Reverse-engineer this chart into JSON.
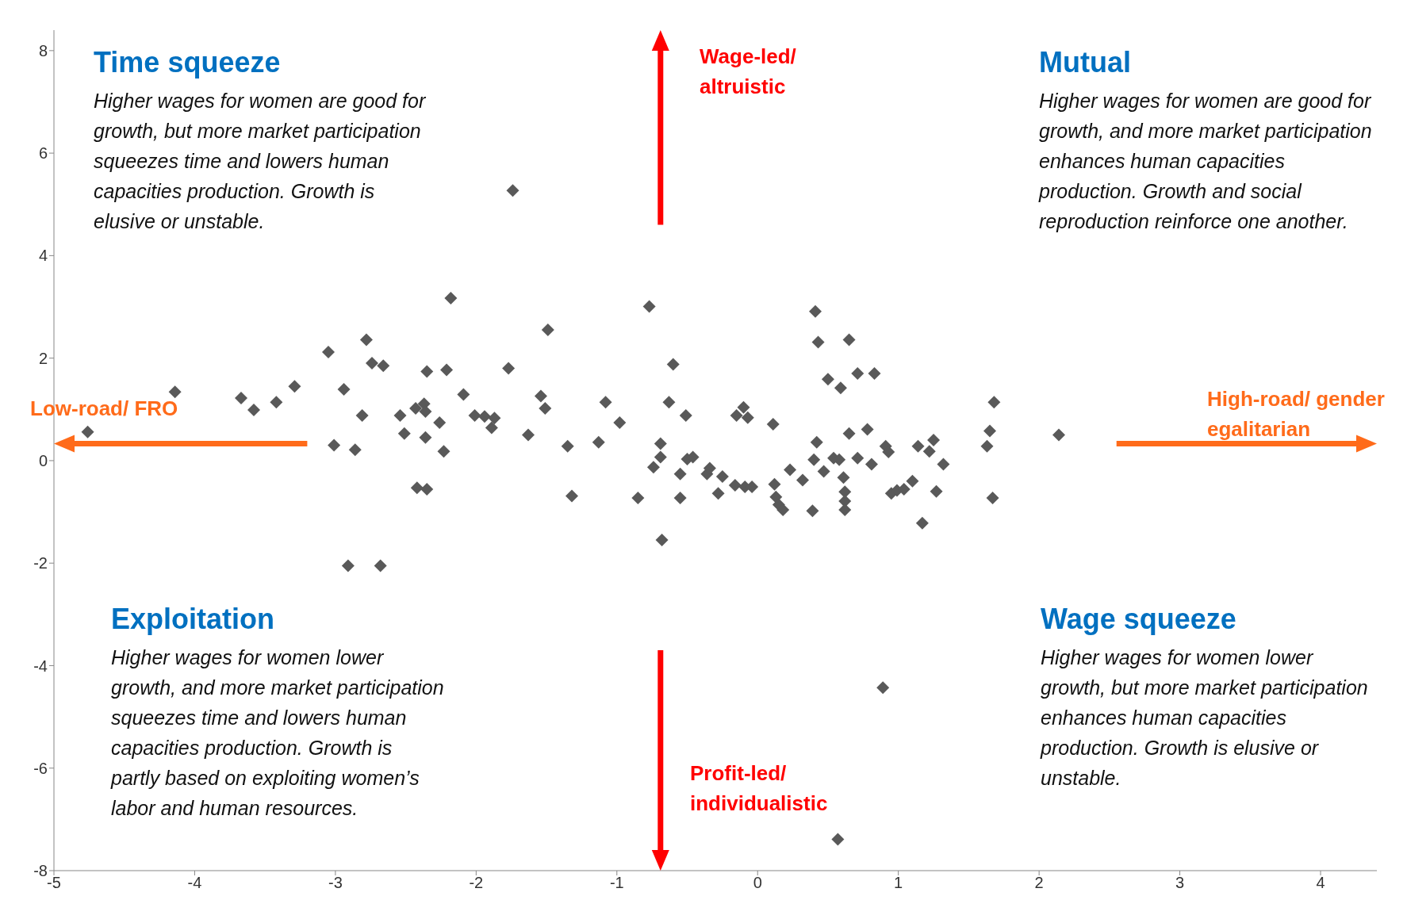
{
  "chart_data": {
    "type": "scatter",
    "marker": "diamond",
    "grid": false,
    "xlim": [
      -5,
      4.4
    ],
    "xticks": [
      -5,
      -4,
      -3,
      -2,
      -1,
      0,
      1,
      2,
      3,
      4
    ],
    "ylim": [
      -8,
      8.4
    ],
    "yticks": [
      -8,
      -6,
      -4,
      -2,
      0,
      2,
      4,
      6,
      8
    ],
    "series": [
      {
        "color": "#595959",
        "x": [
          -4.76,
          -4.14,
          -3.67,
          -3.58,
          -3.42,
          -3.29,
          -3.05,
          -3.01,
          -2.94,
          -2.91,
          -2.86,
          -2.81,
          -2.78,
          -2.74,
          -2.66,
          -2.68,
          -2.54,
          -2.51,
          -2.43,
          -2.42,
          -2.37,
          -2.36,
          -2.36,
          -2.35,
          -2.35,
          -2.26,
          -2.23,
          -2.21,
          -2.18,
          -2.09,
          -2.01,
          -1.94,
          -1.89,
          -1.87,
          -1.77,
          -1.74,
          -1.63,
          -1.54,
          -1.51,
          -1.49,
          -1.35,
          -1.32,
          -1.13,
          -1.08,
          -0.98,
          -0.85,
          -0.77,
          -0.74,
          -0.69,
          -0.69,
          -0.68,
          -0.63,
          -0.6,
          -0.55,
          -0.55,
          -0.51,
          -0.5,
          -0.46,
          -0.36,
          -0.34,
          -0.28,
          -0.25,
          -0.16,
          -0.15,
          -0.1,
          -0.09,
          -0.07,
          -0.04,
          0.11,
          0.12,
          0.13,
          0.15,
          0.18,
          0.23,
          0.32,
          0.39,
          0.41,
          0.42,
          0.4,
          0.43,
          0.47,
          0.5,
          0.54,
          0.58,
          0.59,
          0.61,
          0.62,
          0.62,
          0.62,
          0.65,
          0.65,
          0.71,
          0.71,
          0.78,
          0.81,
          0.83,
          0.89,
          0.91,
          0.93,
          0.95,
          0.99,
          1.04,
          1.1,
          1.14,
          1.17,
          1.22,
          1.25,
          1.27,
          1.32,
          1.63,
          1.65,
          1.67,
          1.68,
          2.14,
          0.57
        ],
        "values": [
          0.56,
          1.34,
          1.22,
          0.99,
          1.14,
          1.45,
          2.12,
          0.3,
          1.39,
          -2.05,
          0.21,
          0.88,
          2.36,
          1.9,
          1.85,
          -2.05,
          0.88,
          0.53,
          1.02,
          -0.53,
          1.11,
          0.96,
          0.45,
          1.74,
          -0.56,
          0.74,
          0.18,
          1.77,
          3.17,
          1.29,
          0.88,
          0.86,
          0.64,
          0.83,
          1.8,
          5.27,
          0.5,
          1.26,
          1.02,
          2.55,
          0.28,
          -0.69,
          0.36,
          1.14,
          0.74,
          -0.73,
          3.01,
          -0.13,
          0.33,
          0.07,
          -1.55,
          1.14,
          1.88,
          -0.26,
          -0.73,
          0.88,
          0.03,
          0.07,
          -0.26,
          -0.15,
          -0.64,
          -0.31,
          -0.48,
          0.88,
          1.04,
          -0.51,
          0.84,
          -0.51,
          0.71,
          -0.46,
          -0.71,
          -0.86,
          -0.96,
          -0.18,
          -0.38,
          -0.98,
          2.91,
          0.36,
          0.02,
          2.31,
          -0.21,
          1.59,
          0.05,
          0.02,
          1.42,
          -0.33,
          -0.61,
          -0.79,
          -0.96,
          2.36,
          0.53,
          1.7,
          0.05,
          0.61,
          -0.07,
          1.7,
          -4.43,
          0.28,
          0.17,
          -0.64,
          -0.58,
          -0.56,
          -0.4,
          0.28,
          -1.22,
          0.18,
          0.4,
          -0.6,
          -0.07,
          0.28,
          0.58,
          -0.73,
          1.14,
          0.5,
          -7.39
        ]
      }
    ],
    "annotations": [
      "Time squeeze",
      "Higher wages for women are good for growth, but more market participation squeezes time and lowers human capacities production. Growth is elusive or unstable.",
      "Mutual",
      "Higher wages for women are good for growth, and more market participation enhances human capacities production. Growth and social reproduction reinforce one another.",
      "Exploitation",
      "Higher wages for women lower growth, and more market participation squeezes time and lowers human capacities production. Growth is partly based on exploiting women’s labor and human resources.",
      "Wage squeeze",
      "Higher wages for women lower growth, but more market participation enhances human capacities production. Growth is elusive or unstable.",
      "Wage-led/ altruistic",
      "Profit-led/ individualistic",
      "Low-road/ FRO",
      "High-road/ gender egalitarian"
    ]
  }
}
